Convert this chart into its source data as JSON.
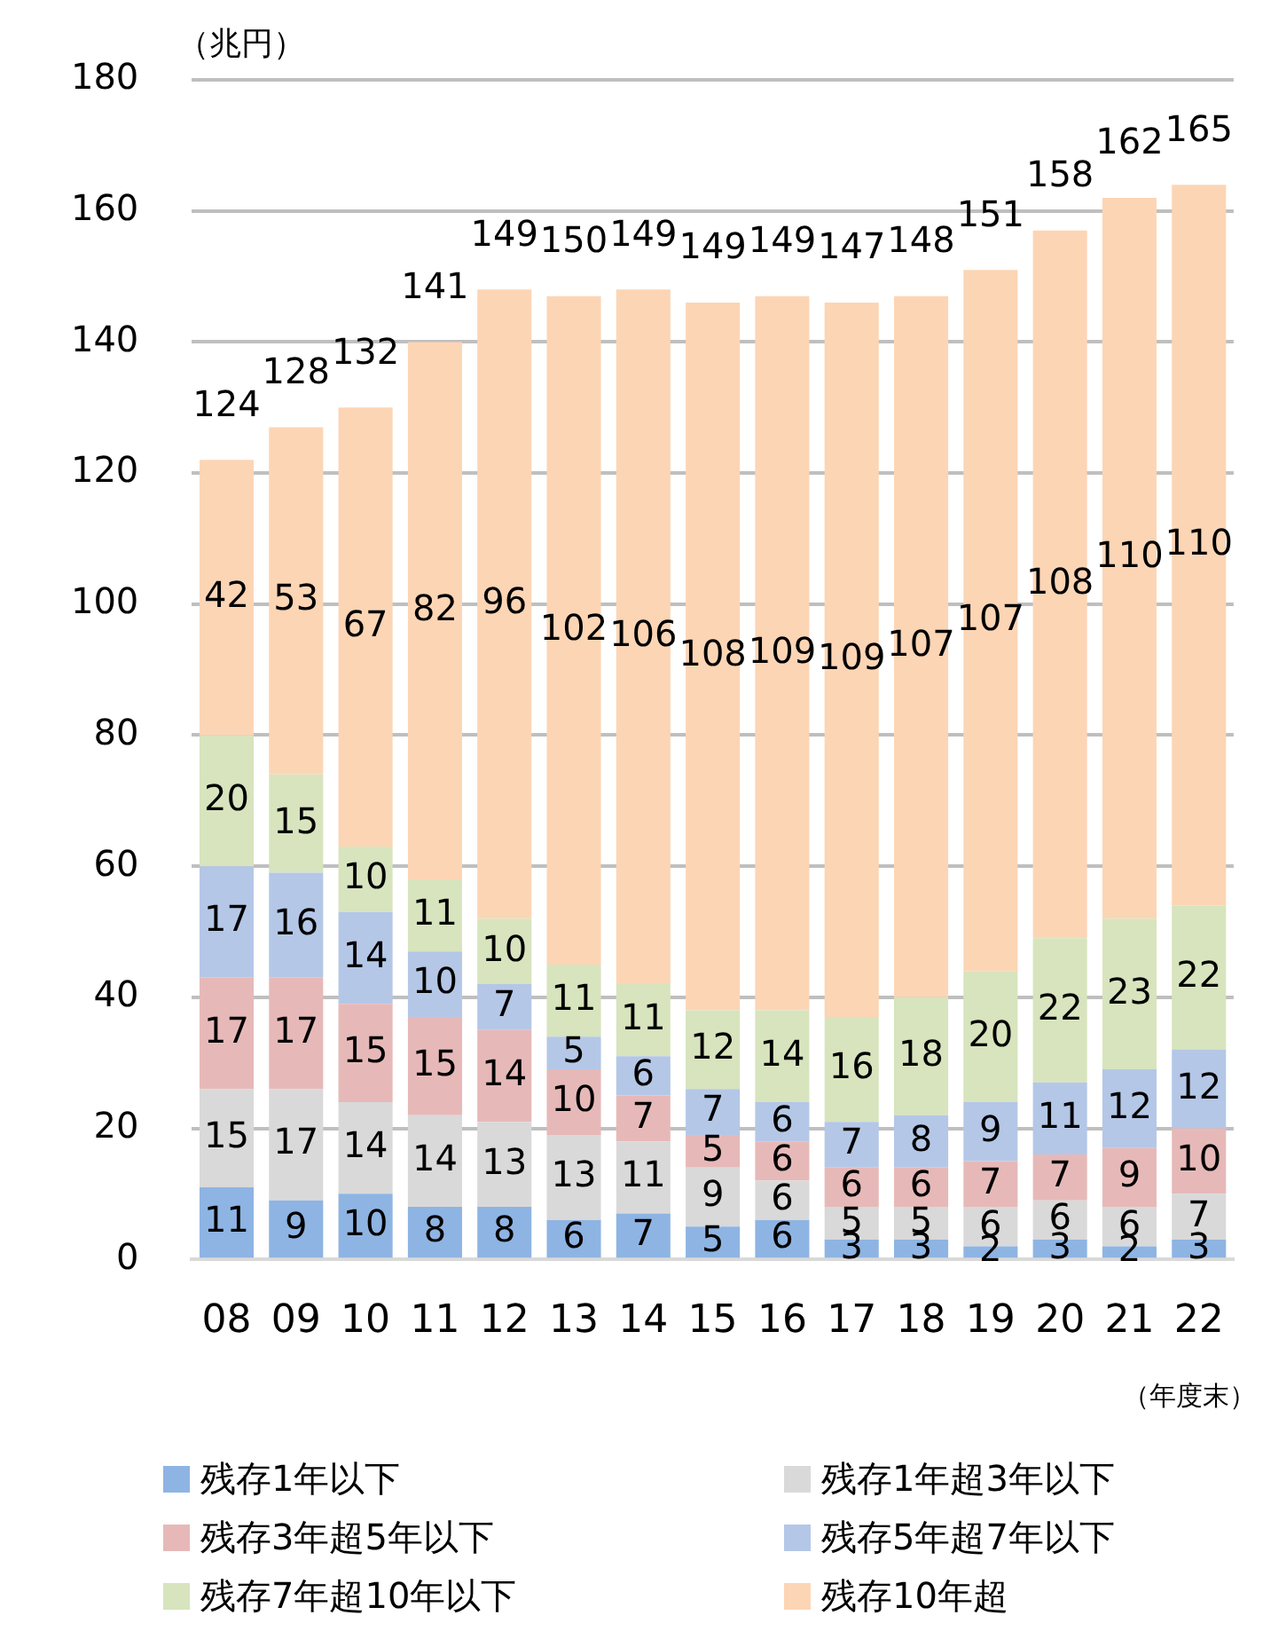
{
  "chart_data": {
    "type": "bar",
    "stacked": true,
    "ylabel": "（兆円）",
    "categories": [
      "08",
      "09",
      "10",
      "11",
      "12",
      "13",
      "14",
      "15",
      "16",
      "17",
      "18",
      "19",
      "20",
      "21",
      "22"
    ],
    "series": [
      {
        "name": "残存1年以下",
        "color": "#8eb4e3",
        "values": [
          11,
          9,
          10,
          8,
          8,
          6,
          7,
          5,
          6,
          3,
          3,
          2,
          3,
          2,
          3
        ]
      },
      {
        "name": "残存1年超3年以下",
        "color": "#d9d9d9",
        "values": [
          15,
          17,
          14,
          14,
          13,
          13,
          11,
          9,
          6,
          5,
          5,
          6,
          6,
          6,
          7
        ]
      },
      {
        "name": "残存3年超5年以下",
        "color": "#e6b9b8",
        "values": [
          17,
          17,
          15,
          15,
          14,
          10,
          7,
          5,
          6,
          6,
          6,
          7,
          7,
          9,
          10
        ]
      },
      {
        "name": "残存5年超7年以下",
        "color": "#b4c7e7",
        "values": [
          17,
          16,
          14,
          10,
          7,
          5,
          6,
          7,
          6,
          7,
          8,
          9,
          11,
          12,
          12
        ]
      },
      {
        "name": "残存7年超10年以下",
        "color": "#d7e4bd",
        "values": [
          20,
          15,
          10,
          11,
          10,
          11,
          11,
          12,
          14,
          16,
          18,
          20,
          22,
          23,
          22
        ]
      },
      {
        "name": "残存10年超",
        "color": "#fcd5b5",
        "values": [
          42,
          53,
          67,
          82,
          96,
          102,
          106,
          108,
          109,
          109,
          107,
          107,
          108,
          110,
          110
        ]
      }
    ],
    "totals": [
      "124",
      "128",
      "132",
      "141",
      "149",
      "150",
      "149",
      "149",
      "149",
      "147",
      "148",
      "151",
      "158",
      "162",
      "165"
    ],
    "data_labels": true,
    "ylim": [
      0,
      180
    ],
    "yticks": [
      0,
      20,
      40,
      60,
      80,
      100,
      120,
      140,
      160,
      180
    ],
    "grid": "y",
    "legend": "bottom",
    "annotations": [
      "（年度末）"
    ]
  }
}
